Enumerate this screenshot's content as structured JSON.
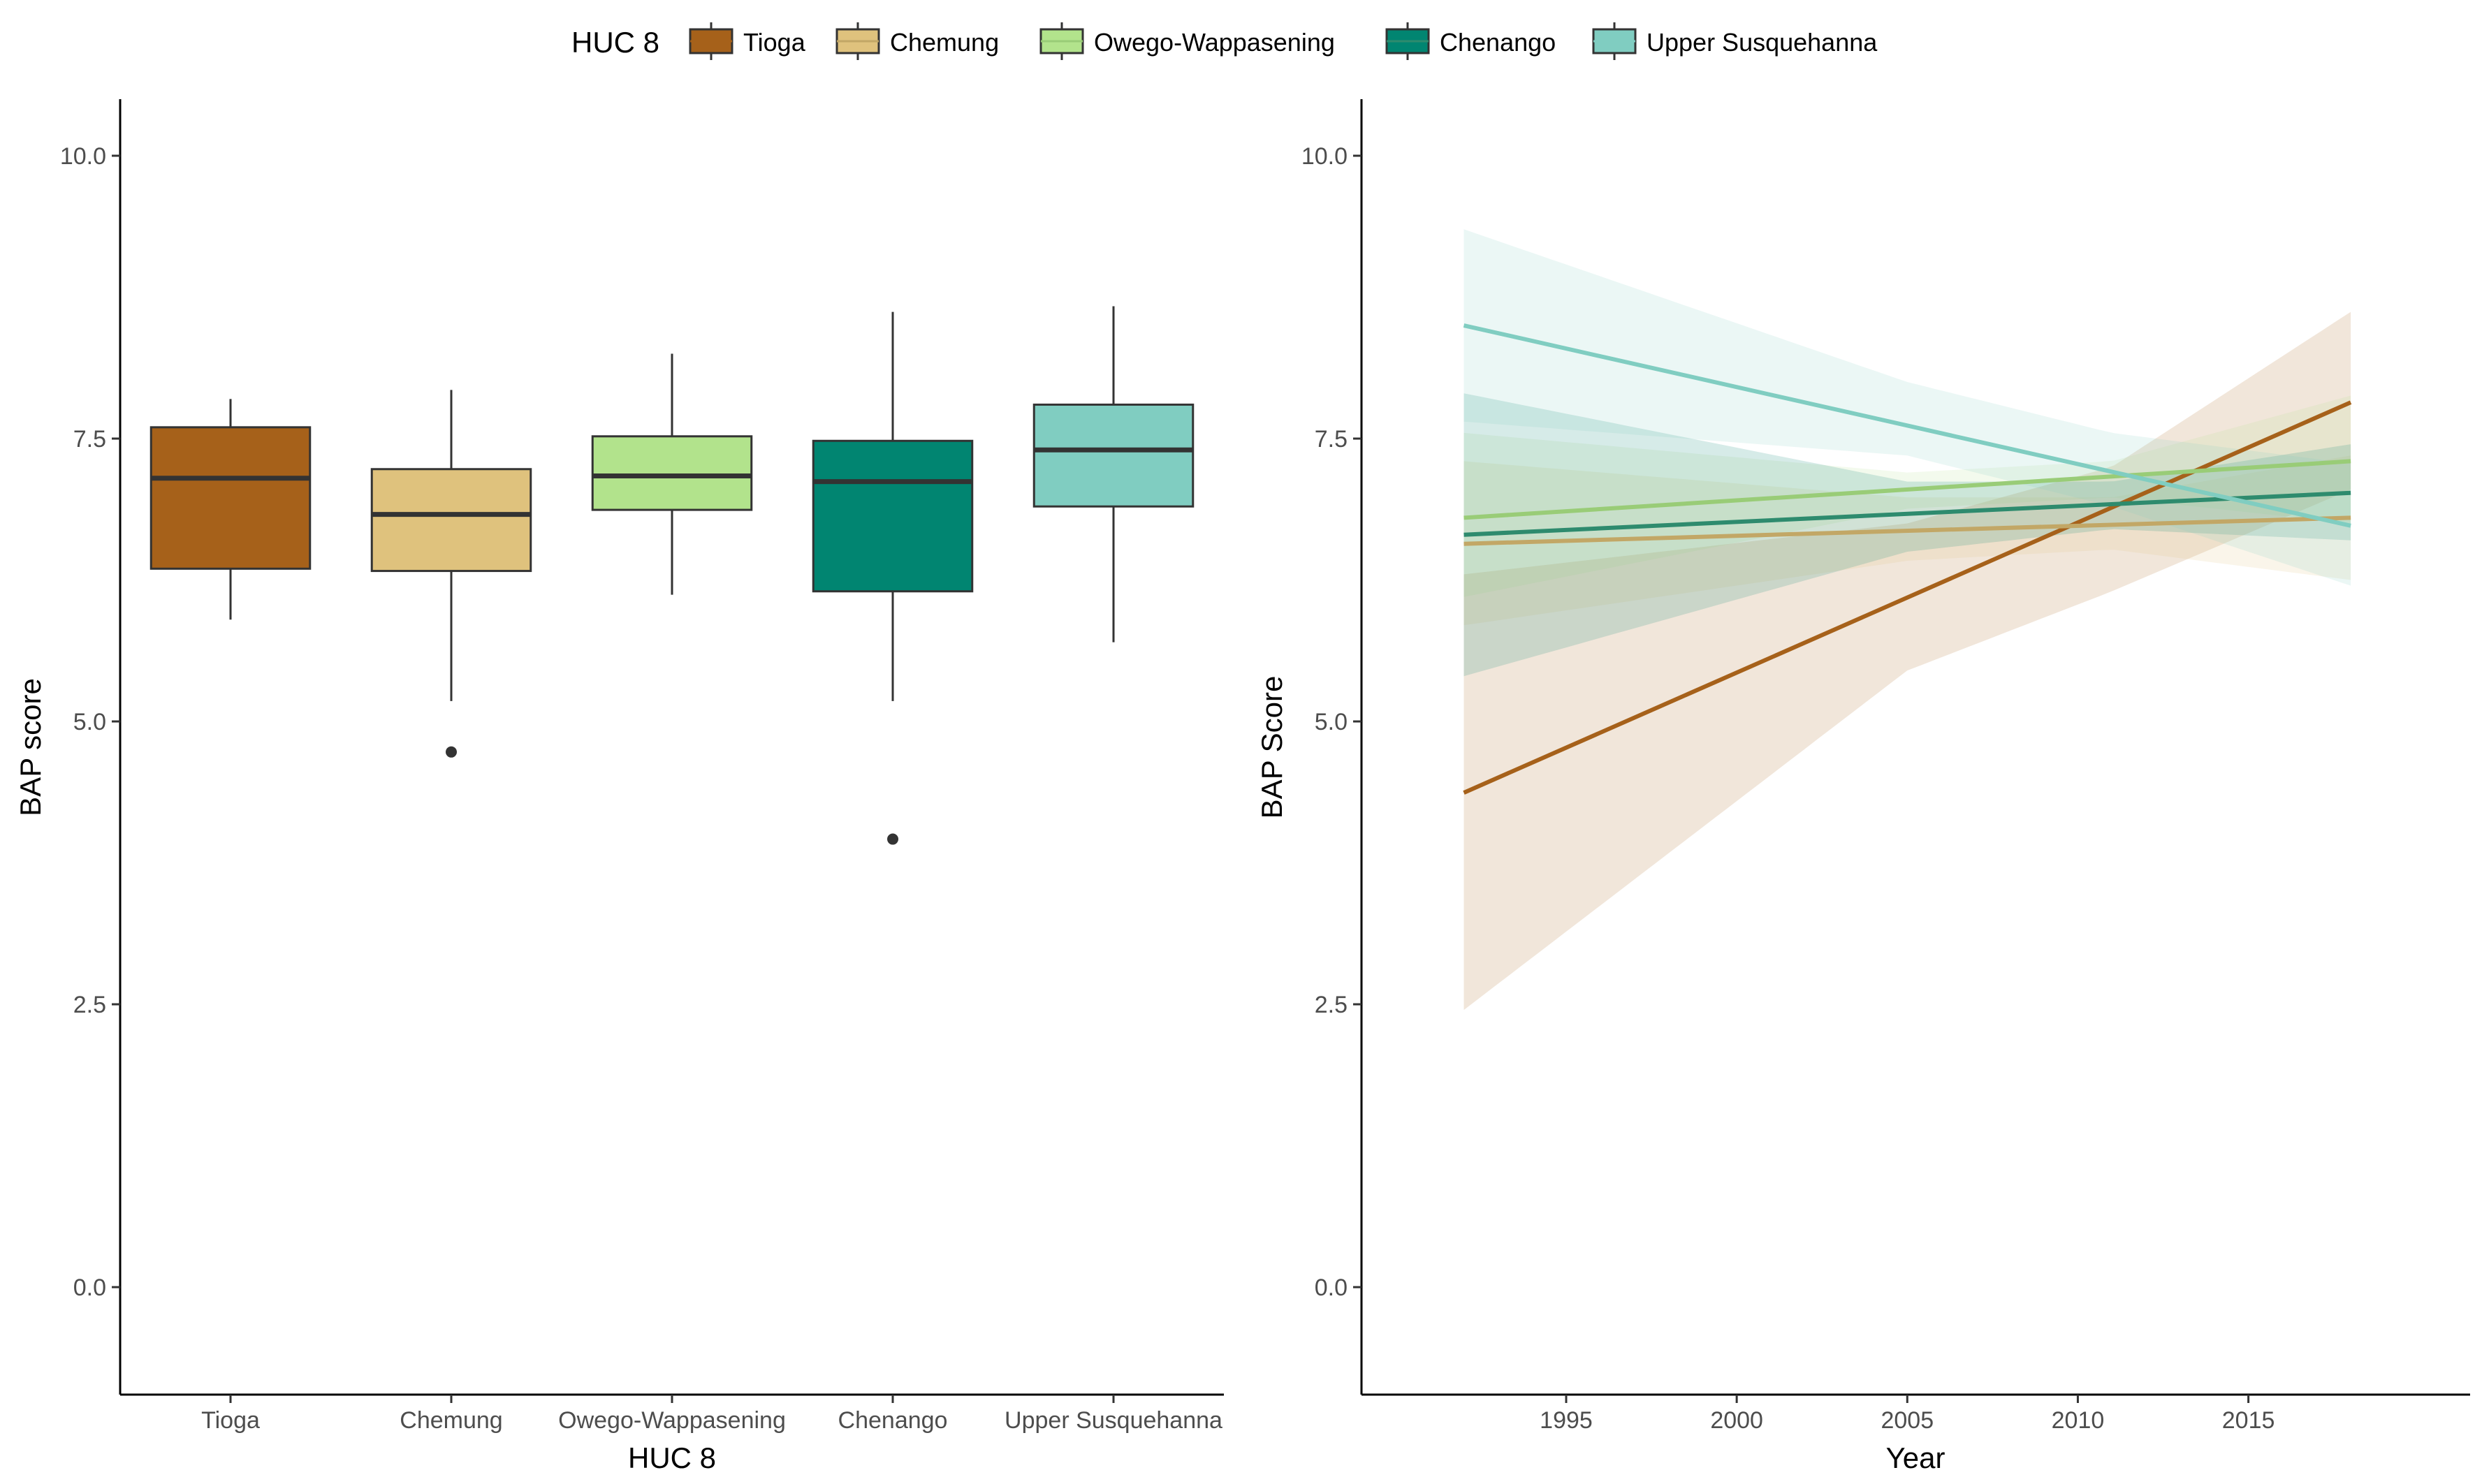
{
  "legend": {
    "title": "HUC 8",
    "entries": [
      {
        "label": "Tioga",
        "fill": "#A6611A",
        "line": "#A6611A"
      },
      {
        "label": "Chemung",
        "fill": "#DFC27D",
        "line": "#C2A766"
      },
      {
        "label": "Owego-Wappasening",
        "fill": "#B2E38C",
        "line": "#99CC77"
      },
      {
        "label": "Chenango",
        "fill": "#018571",
        "line": "#2E8B6E"
      },
      {
        "label": "Upper Susquehanna",
        "fill": "#80CDC1",
        "line": "#80CDC1"
      }
    ]
  },
  "chart_data": [
    {
      "type": "box",
      "xlabel": "HUC 8",
      "ylabel": "BAP score",
      "ylim": [
        -0.95,
        10.5
      ],
      "yticks": [
        "0.0",
        "2.5",
        "5.0",
        "7.5",
        "10.0"
      ],
      "categories": [
        "Tioga",
        "Chemung",
        "Owego-Wappasening",
        "Chenango",
        "Upper Susquehanna"
      ],
      "boxes": [
        {
          "category": "Tioga",
          "whisker_low": 5.9,
          "q1": 6.35,
          "median": 7.15,
          "q3": 7.6,
          "whisker_high": 7.85,
          "outliers": []
        },
        {
          "category": "Chemung",
          "whisker_low": 5.18,
          "q1": 6.33,
          "median": 6.83,
          "q3": 7.23,
          "whisker_high": 7.93,
          "outliers": [
            4.73
          ]
        },
        {
          "category": "Owego-Wappasening",
          "whisker_low": 6.12,
          "q1": 6.87,
          "median": 7.17,
          "q3": 7.52,
          "whisker_high": 8.25,
          "outliers": []
        },
        {
          "category": "Chenango",
          "whisker_low": 5.18,
          "q1": 6.15,
          "median": 7.12,
          "q3": 7.48,
          "whisker_high": 8.62,
          "outliers": [
            3.96
          ]
        },
        {
          "category": "Upper Susquehanna",
          "whisker_low": 5.7,
          "q1": 6.9,
          "median": 7.4,
          "q3": 7.8,
          "whisker_high": 8.67,
          "outliers": []
        }
      ],
      "grid": false
    },
    {
      "type": "line",
      "xlabel": "Year",
      "ylabel": "BAP Score",
      "xlim": [
        1989,
        2021.5
      ],
      "ylim": [
        -0.95,
        10.5
      ],
      "xticks": [
        "1995",
        "2000",
        "2005",
        "2010",
        "2015"
      ],
      "yticks": [
        "0.0",
        "2.5",
        "5.0",
        "7.5",
        "10.0"
      ],
      "x_range": [
        1992,
        2018
      ],
      "series": [
        {
          "name": "Tioga",
          "fit": [
            [
              1992,
              4.37
            ],
            [
              2018,
              7.82
            ]
          ],
          "ci_low": [
            [
              1992,
              2.45
            ],
            [
              2005,
              5.45
            ],
            [
              2011,
              6.15
            ],
            [
              2018,
              7.05
            ]
          ],
          "ci_high": [
            [
              1992,
              6.3
            ],
            [
              2005,
              6.75
            ],
            [
              2011,
              7.25
            ],
            [
              2018,
              8.62
            ]
          ]
        },
        {
          "name": "Chemung",
          "fit": [
            [
              1992,
              6.57
            ],
            [
              2018,
              6.8
            ]
          ],
          "ci_low": [
            [
              1992,
              5.85
            ],
            [
              2005,
              6.42
            ],
            [
              2011,
              6.52
            ],
            [
              2018,
              6.25
            ]
          ],
          "ci_high": [
            [
              1992,
              7.3
            ],
            [
              2005,
              6.98
            ],
            [
              2011,
              6.98
            ],
            [
              2018,
              7.35
            ]
          ]
        },
        {
          "name": "Owego-Wappasening",
          "fit": [
            [
              1992,
              6.8
            ],
            [
              2018,
              7.3
            ]
          ],
          "ci_low": [
            [
              1992,
              6.1
            ],
            [
              2005,
              6.88
            ],
            [
              2011,
              6.98
            ],
            [
              2018,
              6.75
            ]
          ],
          "ci_high": [
            [
              1992,
              7.55
            ],
            [
              2005,
              7.2
            ],
            [
              2011,
              7.3
            ],
            [
              2018,
              7.88
            ]
          ]
        },
        {
          "name": "Chenango",
          "fit": [
            [
              1992,
              6.65
            ],
            [
              2018,
              7.02
            ]
          ],
          "ci_low": [
            [
              1992,
              5.4
            ],
            [
              2005,
              6.5
            ],
            [
              2011,
              6.7
            ],
            [
              2018,
              6.6
            ]
          ],
          "ci_high": [
            [
              1992,
              7.9
            ],
            [
              2005,
              7.12
            ],
            [
              2011,
              7.12
            ],
            [
              2018,
              7.45
            ]
          ]
        },
        {
          "name": "Upper Susquehanna",
          "fit": [
            [
              1992,
              8.5
            ],
            [
              2018,
              6.73
            ]
          ],
          "ci_low": [
            [
              1992,
              7.65
            ],
            [
              2005,
              7.35
            ],
            [
              2011,
              6.9
            ],
            [
              2018,
              6.2
            ]
          ],
          "ci_high": [
            [
              1992,
              9.35
            ],
            [
              2005,
              8.0
            ],
            [
              2011,
              7.55
            ],
            [
              2018,
              7.28
            ]
          ]
        }
      ],
      "band_opacity": 0.16,
      "grid": false
    }
  ]
}
